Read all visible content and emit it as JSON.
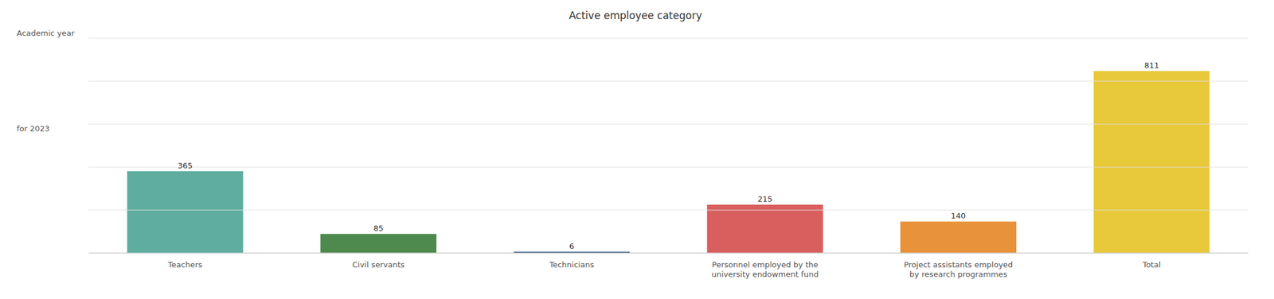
{
  "chart_data": {
    "type": "bar",
    "title": "Active employee category",
    "annotations": [
      "Academic year",
      "for 2023"
    ],
    "categories": [
      "Teachers",
      "Civil servants",
      "Technicians",
      "Personnel employed by the\nuniversity endowment fund",
      "Project assistants employed\nby research programmes",
      "Total"
    ],
    "values": [
      365,
      85,
      6,
      215,
      140,
      811
    ],
    "colors": [
      "#5fada0",
      "#4e8a4e",
      "#3a6186",
      "#d95f5f",
      "#e8923a",
      "#e8c93a"
    ],
    "ylim": [
      0,
      956.98
    ],
    "yticks": [
      0,
      191.396,
      382.792,
      574.188,
      765.584,
      956.98
    ],
    "grid": true,
    "data_labels": true,
    "tick_labels": "x"
  }
}
